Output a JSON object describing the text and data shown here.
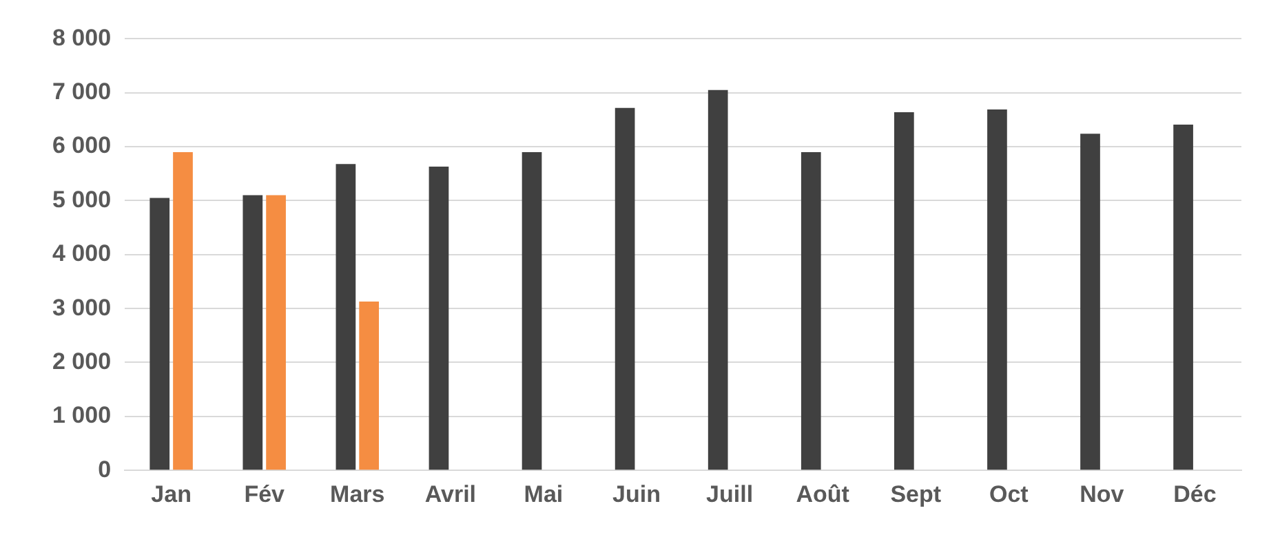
{
  "chart_data": {
    "type": "bar",
    "categories": [
      "Jan",
      "Fév",
      "Mars",
      "Avril",
      "Mai",
      "Juin",
      "Juill",
      "Août",
      "Sept",
      "Oct",
      "Nov",
      "Déc"
    ],
    "series": [
      {
        "color": "#404040",
        "values": [
          5050,
          5100,
          5680,
          5630,
          5900,
          6720,
          7050,
          5900,
          6640,
          6690,
          6240,
          6410
        ]
      },
      {
        "color": "#f58d42",
        "values": [
          5900,
          5100,
          3130,
          null,
          null,
          null,
          null,
          null,
          null,
          null,
          null,
          null
        ]
      }
    ],
    "ylim": [
      0,
      8000
    ],
    "yticks": [
      0,
      {
        "value": 1000,
        "label": "1 000"
      },
      {
        "value": 2000,
        "label": "2 000"
      },
      {
        "value": 3000,
        "label": "3 000"
      },
      {
        "value": 4000,
        "label": "4 000"
      },
      {
        "value": 5000,
        "label": "5 000"
      },
      {
        "value": 6000,
        "label": "6 000"
      },
      {
        "value": 7000,
        "label": "7 000"
      },
      {
        "value": 8000,
        "label": "8 000"
      }
    ],
    "grid": "y",
    "legend": false
  }
}
